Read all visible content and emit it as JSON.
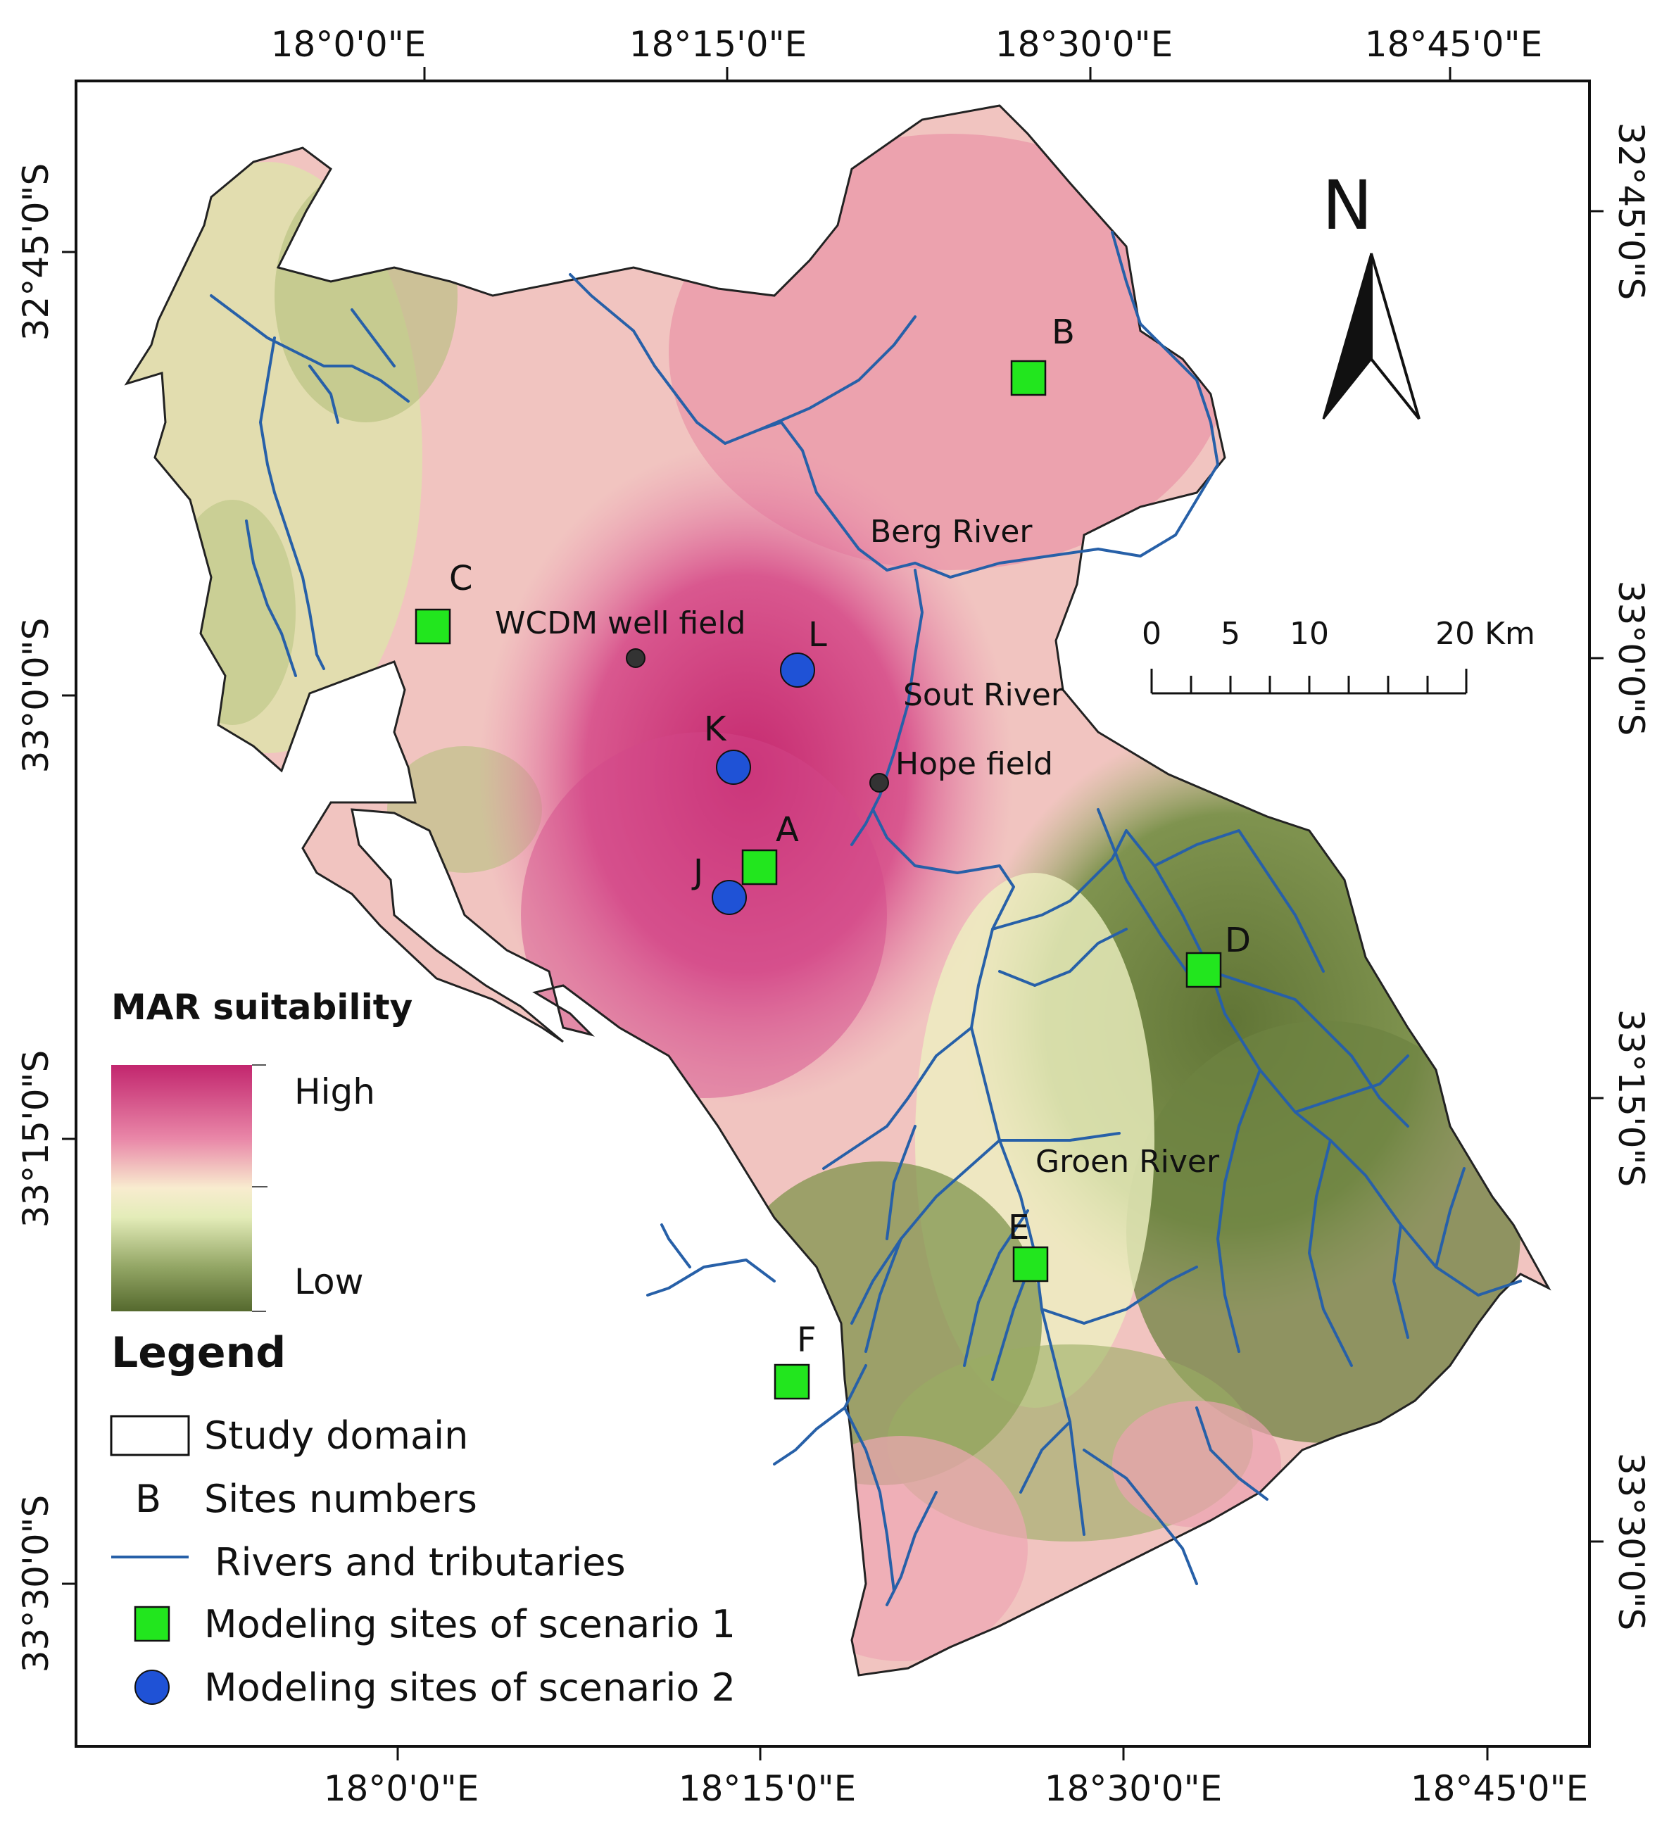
{
  "map": {
    "top_axis_labels": [
      "18°0'0\"E",
      "18°15'0\"E",
      "18°30'0\"E",
      "18°45'0\"E"
    ],
    "bottom_axis_labels": [
      "18°0'0\"E",
      "18°15'0\"E",
      "18°30'0\"E",
      "18°45'0\"E"
    ],
    "left_axis_labels": [
      "32°45'0\"S",
      "33°0'0\"S",
      "33°15'0\"S",
      "33°30'0\"S"
    ],
    "right_axis_labels": [
      "32°45'0\"S",
      "33°0'0\"S",
      "33°15'0\"S",
      "33°30'0\"S"
    ],
    "rivers": {
      "berg": "Berg River",
      "sout": "Sout River",
      "groen": "Groen River"
    },
    "places": {
      "wcdm": "WCDM well field",
      "hope": "Hope field"
    },
    "sites_scenario1": [
      "A",
      "B",
      "C",
      "D",
      "E",
      "F"
    ],
    "sites_scenario2": [
      "J",
      "K",
      "L"
    ],
    "north": "N",
    "scale": {
      "ticks": [
        "0",
        "5",
        "10",
        "20 Km"
      ]
    },
    "colors": {
      "high": "#c2266e",
      "mid": "#f6f4c8",
      "low": "#5d7235",
      "river": "#2760a8",
      "scenario1": "#22e61e",
      "scenario2": "#1f52d6"
    }
  },
  "legend": {
    "ramp_title": "MAR suitability",
    "high": "High",
    "low": "Low",
    "title": "Legend",
    "items": {
      "study_domain": "Study domain",
      "site_letter": "B",
      "sites_numbers": "Sites numbers",
      "rivers": "Rivers and   tributaries",
      "scenario1": "Modeling sites of scenario 1",
      "scenario2": "Modeling sites of scenario 2"
    }
  }
}
